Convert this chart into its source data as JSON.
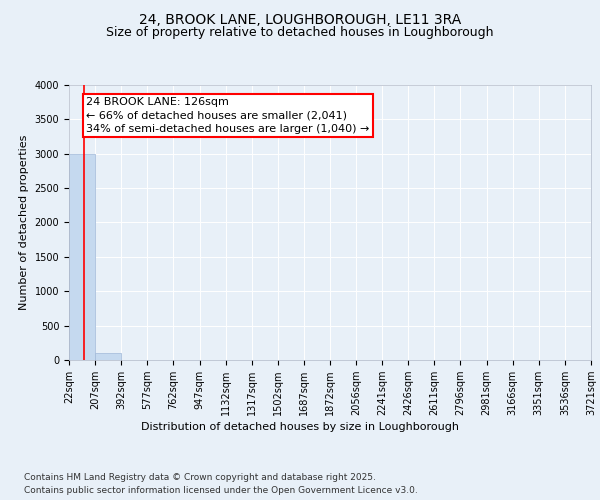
{
  "title_line1": "24, BROOK LANE, LOUGHBOROUGH, LE11 3RA",
  "title_line2": "Size of property relative to detached houses in Loughborough",
  "xlabel": "Distribution of detached houses by size in Loughborough",
  "ylabel": "Number of detached properties",
  "annotation_line1": "24 BROOK LANE: 126sqm",
  "annotation_line2": "← 66% of detached houses are smaller (2,041)",
  "annotation_line3": "34% of semi-detached houses are larger (1,040) →",
  "footer_line1": "Contains HM Land Registry data © Crown copyright and database right 2025.",
  "footer_line2": "Contains public sector information licensed under the Open Government Licence v3.0.",
  "bin_edges": [
    22,
    207,
    392,
    577,
    762,
    947,
    1132,
    1317,
    1502,
    1687,
    1872,
    2056,
    2241,
    2426,
    2611,
    2796,
    2981,
    3166,
    3351,
    3536,
    3721
  ],
  "bar_heights": [
    3000,
    100,
    0,
    0,
    0,
    0,
    0,
    0,
    0,
    0,
    0,
    0,
    0,
    0,
    0,
    0,
    0,
    0,
    0,
    0
  ],
  "bar_color": "#c5d9ef",
  "bar_edge_color": "#a0b8d8",
  "red_line_x": 126,
  "ylim": [
    0,
    4000
  ],
  "bg_color": "#e8f0f8",
  "plot_bg_color": "#e8f0f8",
  "grid_color": "#ffffff",
  "title_fontsize": 10,
  "subtitle_fontsize": 9,
  "tick_fontsize": 7,
  "ylabel_fontsize": 8,
  "xlabel_fontsize": 8,
  "annotation_fontsize": 8,
  "footer_fontsize": 6.5
}
